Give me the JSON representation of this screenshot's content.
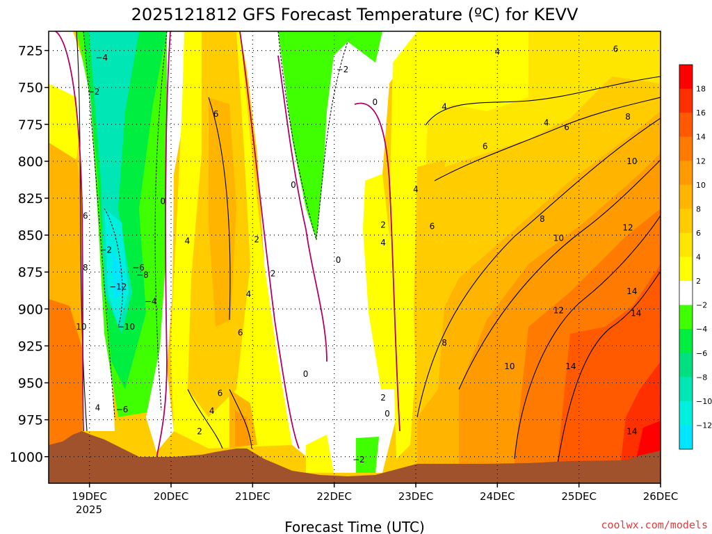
{
  "chart_data": {
    "type": "heatmap",
    "title": "2025121812 GFS Forecast Temperature (ºC) for KEVV",
    "xlabel": "Forecast Time (UTC)",
    "ylabel": "",
    "credit": "coolwx.com/models",
    "x_ticks": [
      "19DEC",
      "20DEC",
      "21DEC",
      "22DEC",
      "23DEC",
      "24DEC",
      "25DEC",
      "26DEC"
    ],
    "x_tick_year": "2025",
    "x_range": [
      18.5,
      26.0
    ],
    "y_ticks": [
      725,
      750,
      775,
      800,
      825,
      850,
      875,
      900,
      925,
      950,
      975,
      1000
    ],
    "y_tick_labels": [
      "725",
      "750",
      "775",
      "800",
      "825",
      "850",
      "875",
      "900",
      "925",
      "950",
      "975",
      "1000"
    ],
    "y_range_hpa": [
      712,
      1018
    ],
    "colorbar": {
      "labels": [
        "18",
        "16",
        "14",
        "12",
        "10",
        "8",
        "6",
        "4",
        "2",
        "−2",
        "−4",
        "−6",
        "−8",
        "−10",
        "−12"
      ],
      "colors": [
        "#ff0000",
        "#ff3000",
        "#ff5a00",
        "#ff7a00",
        "#ff9a00",
        "#ffb400",
        "#ffcc00",
        "#ffe600",
        "#ffff00",
        "#ffffff",
        "#40ff00",
        "#00ee40",
        "#00e080",
        "#00e6b4",
        "#00f0e0",
        "#00e6ff"
      ]
    },
    "surface_color": "#a0522d",
    "contour_labels": [
      {
        "text": "−4",
        "x": 19.15,
        "p": 730
      },
      {
        "text": "−2",
        "x": 19.05,
        "p": 753
      },
      {
        "text": "−2",
        "x": 22.1,
        "p": 738
      },
      {
        "text": "0",
        "x": 22.5,
        "p": 760
      },
      {
        "text": "4",
        "x": 24.0,
        "p": 726
      },
      {
        "text": "6",
        "x": 25.45,
        "p": 724
      },
      {
        "text": "4",
        "x": 23.35,
        "p": 763
      },
      {
        "text": "6",
        "x": 20.55,
        "p": 768
      },
      {
        "text": "4",
        "x": 24.6,
        "p": 774
      },
      {
        "text": "6",
        "x": 24.85,
        "p": 777
      },
      {
        "text": "8",
        "x": 25.6,
        "p": 770
      },
      {
        "text": "6",
        "x": 23.85,
        "p": 790
      },
      {
        "text": "10",
        "x": 25.65,
        "p": 800
      },
      {
        "text": "0",
        "x": 21.5,
        "p": 816
      },
      {
        "text": "4",
        "x": 23.0,
        "p": 819
      },
      {
        "text": "0",
        "x": 19.9,
        "p": 827
      },
      {
        "text": "6",
        "x": 18.95,
        "p": 837
      },
      {
        "text": "8",
        "x": 24.55,
        "p": 839
      },
      {
        "text": "2",
        "x": 22.6,
        "p": 843
      },
      {
        "text": "6",
        "x": 23.2,
        "p": 844
      },
      {
        "text": "12",
        "x": 25.6,
        "p": 845
      },
      {
        "text": "2",
        "x": 21.05,
        "p": 853
      },
      {
        "text": "10",
        "x": 24.75,
        "p": 852
      },
      {
        "text": "4",
        "x": 20.2,
        "p": 854
      },
      {
        "text": "4",
        "x": 22.6,
        "p": 855
      },
      {
        "text": "−2",
        "x": 19.2,
        "p": 860
      },
      {
        "text": "0",
        "x": 22.05,
        "p": 867
      },
      {
        "text": "8",
        "x": 18.95,
        "p": 872
      },
      {
        "text": "−6",
        "x": 19.6,
        "p": 872
      },
      {
        "text": "2",
        "x": 21.25,
        "p": 876
      },
      {
        "text": "−8",
        "x": 19.65,
        "p": 877
      },
      {
        "text": "−12",
        "x": 19.35,
        "p": 885
      },
      {
        "text": "4",
        "x": 20.95,
        "p": 890
      },
      {
        "text": "14",
        "x": 25.65,
        "p": 888
      },
      {
        "text": "−4",
        "x": 19.75,
        "p": 895
      },
      {
        "text": "12",
        "x": 24.75,
        "p": 901
      },
      {
        "text": "14",
        "x": 25.7,
        "p": 903
      },
      {
        "text": "10",
        "x": 18.9,
        "p": 912
      },
      {
        "text": "−10",
        "x": 19.45,
        "p": 912
      },
      {
        "text": "6",
        "x": 20.85,
        "p": 916
      },
      {
        "text": "8",
        "x": 23.35,
        "p": 923
      },
      {
        "text": "10",
        "x": 24.15,
        "p": 939
      },
      {
        "text": "14",
        "x": 24.9,
        "p": 939
      },
      {
        "text": "0",
        "x": 21.65,
        "p": 944
      },
      {
        "text": "6",
        "x": 20.6,
        "p": 957
      },
      {
        "text": "2",
        "x": 22.6,
        "p": 960
      },
      {
        "text": "4",
        "x": 19.1,
        "p": 967
      },
      {
        "text": "−6",
        "x": 19.4,
        "p": 968
      },
      {
        "text": "4",
        "x": 20.5,
        "p": 969
      },
      {
        "text": "0",
        "x": 22.65,
        "p": 971
      },
      {
        "text": "2",
        "x": 20.35,
        "p": 983
      },
      {
        "text": "14",
        "x": 25.65,
        "p": 983
      },
      {
        "text": "−2",
        "x": 22.3,
        "p": 1002
      }
    ]
  }
}
